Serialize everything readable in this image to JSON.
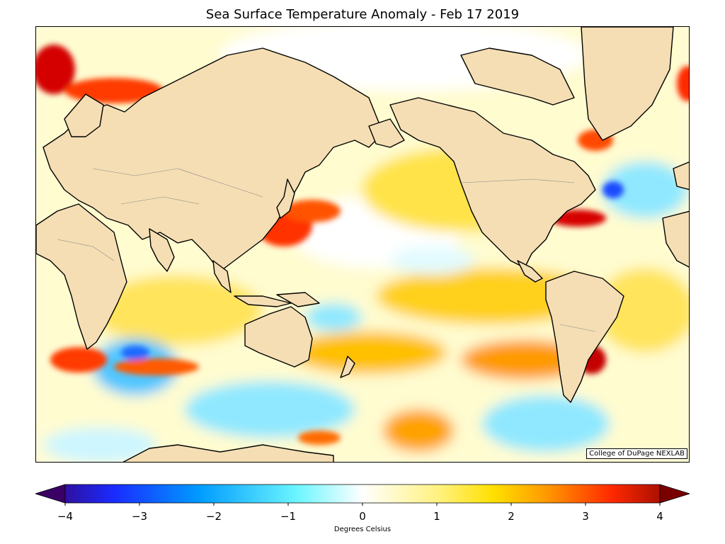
{
  "title": "Sea Surface Temperature Anomaly - Feb 17 2019",
  "credit": "College of DuPage NEXLAB",
  "map": {
    "type": "world sea surface temperature anomaly map",
    "land_color": "#f5deb3",
    "coast_color": "#000000"
  },
  "colorbar": {
    "unit_label": "Degrees Celsius",
    "min": -4,
    "max": 4,
    "ticks": [
      "−4",
      "−3",
      "−2",
      "−1",
      "0",
      "1",
      "2",
      "3",
      "4"
    ],
    "colors": [
      "#3a0066",
      "#1a2bff",
      "#009bff",
      "#6cf6ff",
      "#ffffff",
      "#fff17a",
      "#ffc400",
      "#ff4a00",
      "#c40000",
      "#7a0000"
    ]
  }
}
